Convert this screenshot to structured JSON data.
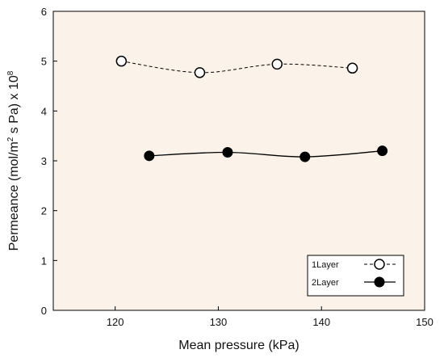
{
  "chart_data": {
    "type": "scatter",
    "xlabel": "Mean pressure (kPa)",
    "ylabel_parts": {
      "prefix": "Permeance (mol/m",
      "sup1": "2",
      "middle": " s Pa) x 10",
      "sup2": "8"
    },
    "xlim": [
      114,
      150
    ],
    "ylim": [
      0,
      6
    ],
    "x_ticks": [
      120,
      130,
      140,
      150
    ],
    "y_ticks": [
      0,
      1,
      2,
      3,
      4,
      5,
      6
    ],
    "background": "#fbf3ea",
    "grid": false,
    "legend_position": "bottom-right",
    "series": [
      {
        "name": "1Layer",
        "marker": "open-circle",
        "line": "dashed",
        "x": [
          120.6,
          128.2,
          135.7,
          143.0
        ],
        "y": [
          5.0,
          4.77,
          4.94,
          4.86
        ]
      },
      {
        "name": "2Layer",
        "marker": "filled-circle",
        "line": "solid",
        "x": [
          123.3,
          130.9,
          138.4,
          145.9
        ],
        "y": [
          3.1,
          3.17,
          3.08,
          3.2
        ]
      }
    ]
  }
}
